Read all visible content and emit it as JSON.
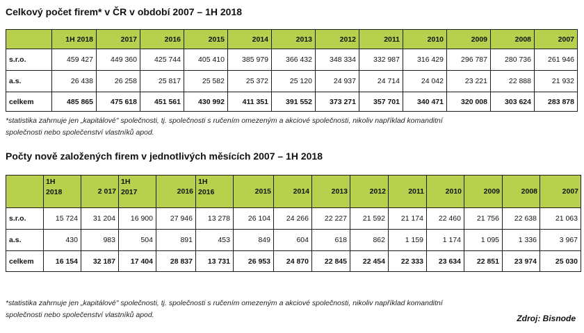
{
  "table1": {
    "title": "Celkový počet firem* v ČR v období 2007 – 1H 2018",
    "headers": [
      "1H 2018",
      "2017",
      "2016",
      "2015",
      "2014",
      "2013",
      "2012",
      "2011",
      "2010",
      "2009",
      "2008",
      "2007"
    ],
    "rows": [
      {
        "label": "s.r.o.",
        "values": [
          "459 427",
          "449 360",
          "425 744",
          "405 410",
          "385 979",
          "366 432",
          "348 334",
          "332 987",
          "316 429",
          "296 787",
          "280 736",
          "261 946"
        ]
      },
      {
        "label": "a.s.",
        "values": [
          "26 438",
          "26 258",
          "25 817",
          "25 582",
          "25 372",
          "25 120",
          "24 937",
          "24 714",
          "24 042",
          "23 221",
          "22 888",
          "21 932"
        ]
      },
      {
        "label": "celkem",
        "values": [
          "485 865",
          "475 618",
          "451 561",
          "430 992",
          "411 351",
          "391 552",
          "373 271",
          "357 701",
          "340 471",
          "320 008",
          "303 624",
          "283 878"
        ]
      }
    ],
    "note_line1": "*statistika zahrnuje jen „kapitálové\" společnosti, tj. společnosti s ručením omezeným a akciové společnosti, nikoliv například komanditní",
    "note_line2": "společnosti nebo společenství vlastníků apod."
  },
  "table2": {
    "title": "Počty nově založených firem v jednotlivých měsících 2007 – 1H 2018",
    "headers": [
      {
        "line1": "1H",
        "line2": "2018"
      },
      {
        "line1": "2 017",
        "line2": ""
      },
      {
        "line1": "1H",
        "line2": "2017"
      },
      {
        "line1": "2016",
        "line2": ""
      },
      {
        "line1": "1H",
        "line2": "2016"
      },
      {
        "line1": "2015",
        "line2": ""
      },
      {
        "line1": "2014",
        "line2": ""
      },
      {
        "line1": "2013",
        "line2": ""
      },
      {
        "line1": "2012",
        "line2": ""
      },
      {
        "line1": "2011",
        "line2": ""
      },
      {
        "line1": "2010",
        "line2": ""
      },
      {
        "line1": "2009",
        "line2": ""
      },
      {
        "line1": "2008",
        "line2": ""
      },
      {
        "line1": "2007",
        "line2": ""
      }
    ],
    "rows": [
      {
        "label": "s.r.o.",
        "values": [
          "15 724",
          "31 204",
          "16 900",
          "27 946",
          "13 278",
          "26 104",
          "24 266",
          "22 227",
          "21 592",
          "21 174",
          "22 460",
          "21 756",
          "22 638",
          "21 063"
        ]
      },
      {
        "label": "a.s.",
        "values": [
          "430",
          "983",
          "504",
          "891",
          "453",
          "849",
          "604",
          "618",
          "862",
          "1 159",
          "1 174",
          "1 095",
          "1 336",
          "3 967"
        ]
      },
      {
        "label": "celkem",
        "values": [
          "16 154",
          "32 187",
          "17 404",
          "28 837",
          "13 731",
          "26 953",
          "24 870",
          "22 845",
          "22 454",
          "22 333",
          "23 634",
          "22 851",
          "23 974",
          "25 030"
        ]
      }
    ],
    "note_line1": "*statistika zahrnuje jen „kapitálové\" společnosti, tj. společnosti s ručením omezeným a akciové společnosti, nikoliv například komanditní",
    "note_line2": "společnosti nebo společenství vlastníků apod."
  },
  "source": "Zdroj: Bisnode",
  "colors": {
    "header_fill": "#b7d14f",
    "grid_line": "#1a1a1a"
  }
}
